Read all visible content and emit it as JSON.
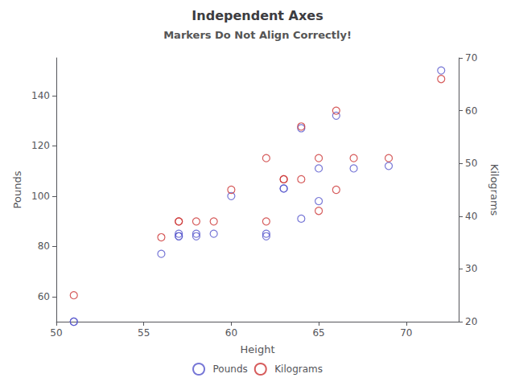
{
  "chart_data": {
    "type": "scatter",
    "title": "Independent Axes",
    "subtitle": "Markers Do Not Align Correctly!",
    "xlabel": "Height",
    "ylabel": "Pounds",
    "y2label": "Kilograms",
    "xlim": [
      50,
      73
    ],
    "xticks": [
      50,
      55,
      60,
      65,
      70
    ],
    "ylim": [
      50,
      155
    ],
    "yticks": [
      60,
      80,
      100,
      120,
      140
    ],
    "y2lim": [
      20,
      70
    ],
    "y2ticks": [
      20,
      30,
      40,
      50,
      60,
      70
    ],
    "grid": false,
    "legend": "bottom",
    "marker": "circle",
    "series": [
      {
        "name": "Pounds",
        "color": "#5555cc",
        "x": [
          51,
          51,
          56,
          57,
          57,
          57,
          58,
          58,
          59,
          60,
          62,
          62,
          63,
          63,
          64,
          64,
          65,
          65,
          66,
          67,
          69,
          72
        ],
        "values": [
          50,
          50,
          77,
          84,
          84,
          85,
          84,
          85,
          85,
          100,
          84,
          85,
          103,
          103,
          91,
          127,
          98,
          111,
          132,
          111,
          112,
          150
        ]
      },
      {
        "name": "Kilograms",
        "color": "#cc3333",
        "axis": "y2",
        "x": [
          51,
          56,
          57,
          57,
          58,
          59,
          60,
          62,
          62,
          63,
          63,
          64,
          64,
          65,
          65,
          66,
          66,
          67,
          69,
          72
        ],
        "values": [
          25,
          36,
          39,
          39,
          39,
          39,
          45,
          39,
          51,
          47,
          47,
          57,
          47,
          41,
          51,
          45,
          60,
          51,
          51,
          66
        ]
      }
    ]
  }
}
